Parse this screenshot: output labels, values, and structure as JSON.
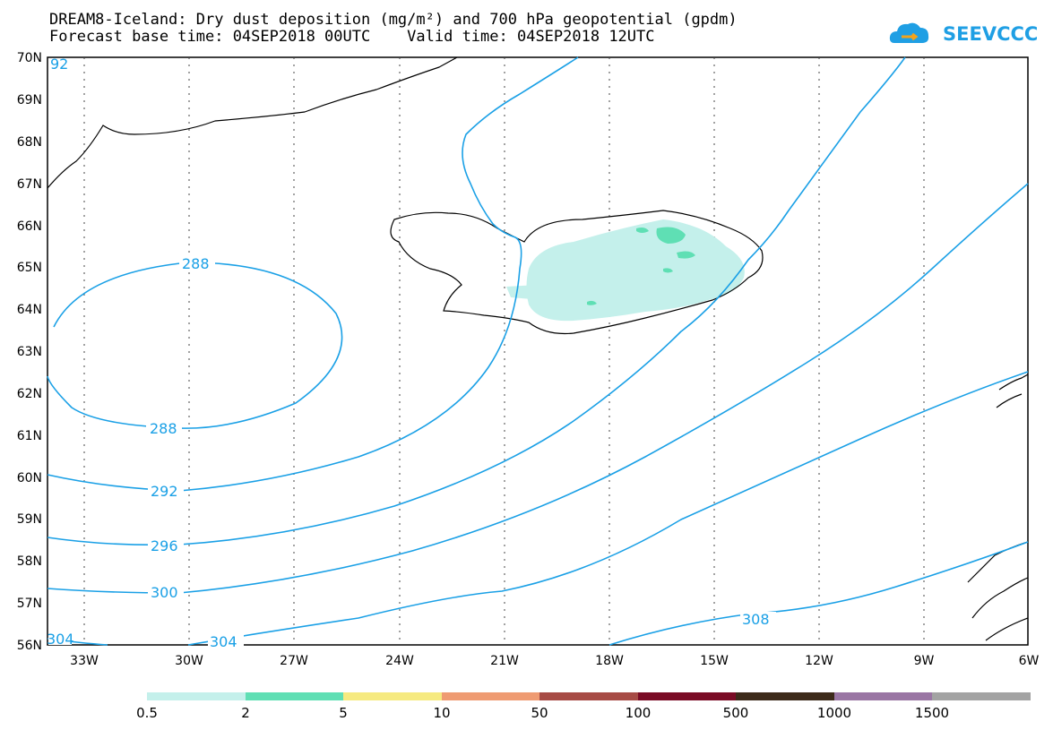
{
  "header": {
    "title_line1": "DREAM8-Iceland: Dry dust deposition (mg/m²) and 700 hPa geopotential (gpdm)",
    "title_line2": "Forecast base time: 04SEP2018 00UTC    Valid time: 04SEP2018 12UTC",
    "logo_text": "SEEVCCC"
  },
  "map": {
    "lat_labels": [
      "70N",
      "69N",
      "68N",
      "67N",
      "66N",
      "65N",
      "64N",
      "63N",
      "62N",
      "61N",
      "60N",
      "59N",
      "58N",
      "57N",
      "56N"
    ],
    "lon_labels": [
      "33W",
      "30W",
      "27W",
      "24W",
      "21W",
      "18W",
      "15W",
      "12W",
      "9W",
      "6W"
    ],
    "contour_color": "#1aa0e6",
    "contour_labels": [
      "288",
      "288",
      "292",
      "296",
      "300",
      "304",
      "304",
      "308",
      "92"
    ]
  },
  "legend": {
    "colors": [
      "#c4f0eb",
      "#5fdfb4",
      "#f6ea80",
      "#ef9b72",
      "#a74b45",
      "#7a0b25",
      "#3d2a1a",
      "#9a76a4",
      "#a3a3a3"
    ],
    "labels": [
      "0.5",
      "2",
      "5",
      "10",
      "50",
      "100",
      "500",
      "1000",
      "1500"
    ]
  }
}
